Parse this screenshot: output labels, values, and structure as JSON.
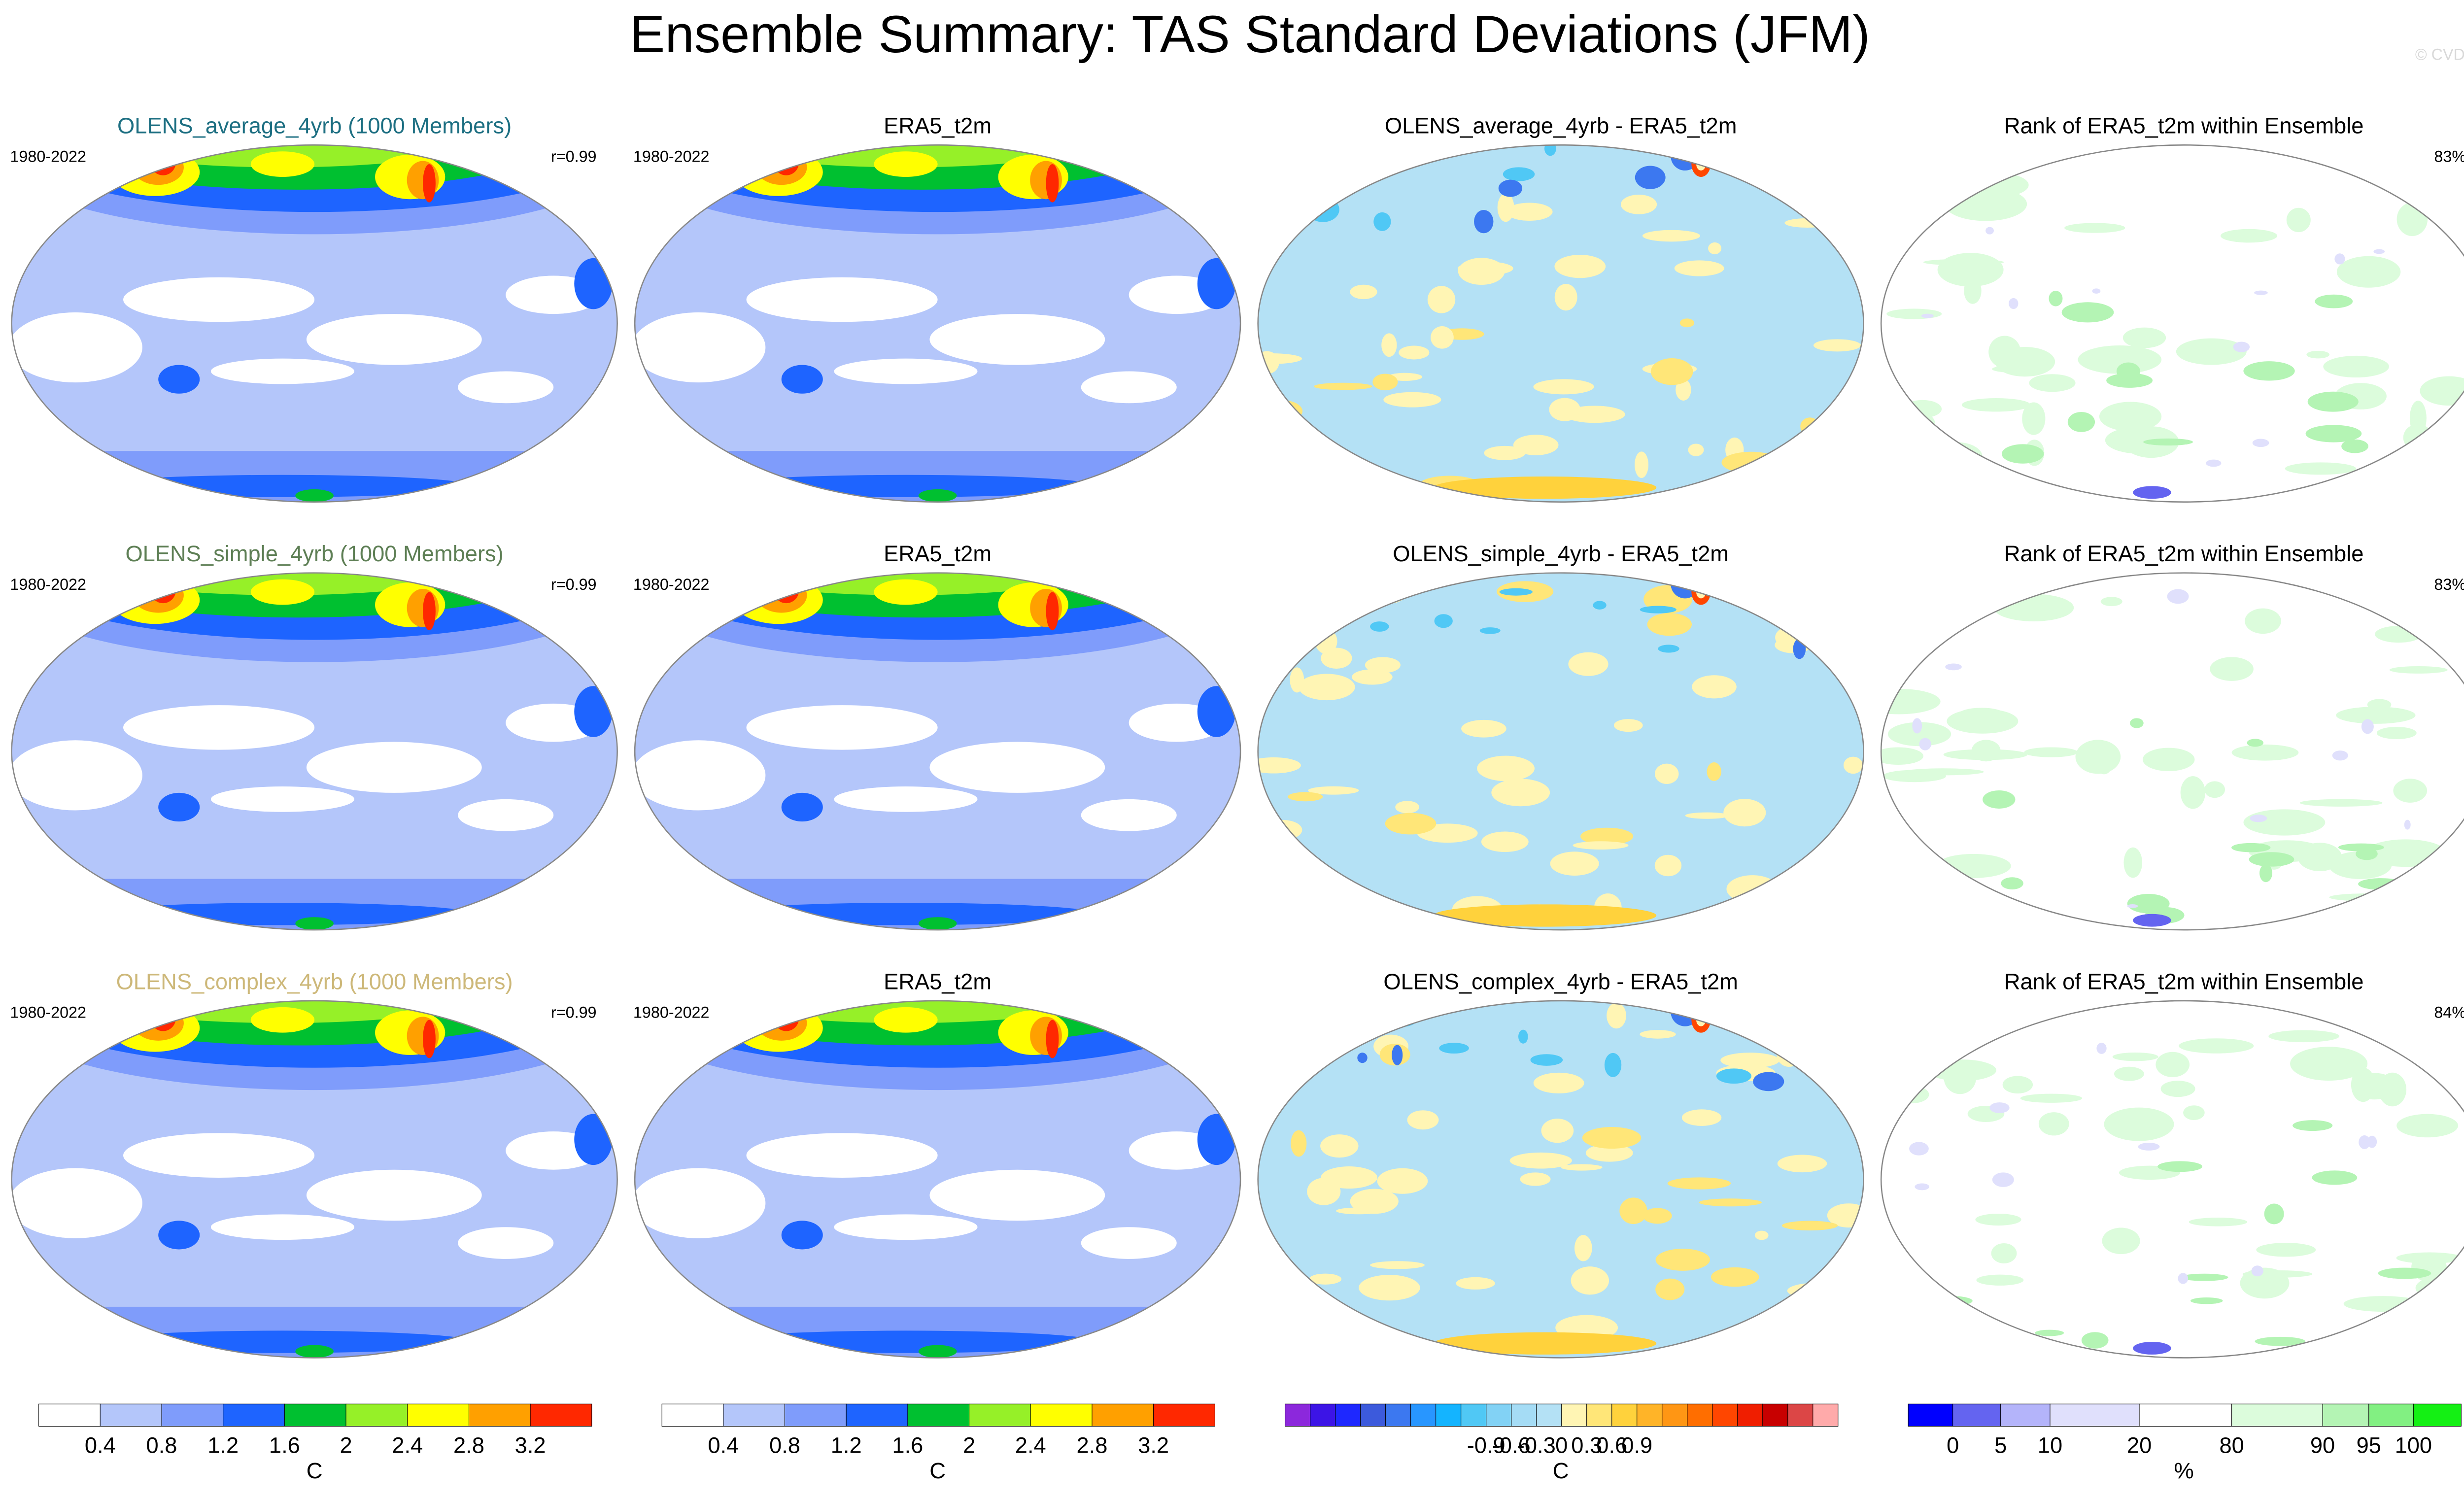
{
  "title": "Ensemble Summary: TAS Standard Deviations (JFM)",
  "watermark": "© CVDP",
  "rows": [
    {
      "panels": [
        {
          "title": "OLENS_average_4yrb (1000 Members)",
          "color": "#1d6f82",
          "map": "std",
          "left": "1980-2022",
          "right": "r=0.99"
        },
        {
          "title": "ERA5_t2m",
          "color": "#000000",
          "map": "std",
          "left": "1980-2022"
        },
        {
          "title": "OLENS_average_4yrb - ERA5_t2m",
          "color": "#000000",
          "map": "diff"
        },
        {
          "title": "Rank of ERA5_t2m within Ensemble",
          "color": "#000000",
          "map": "rank",
          "right": "83%"
        }
      ]
    },
    {
      "panels": [
        {
          "title": "OLENS_simple_4yrb (1000 Members)",
          "color": "#5e7f55",
          "map": "std",
          "left": "1980-2022",
          "right": "r=0.99"
        },
        {
          "title": "ERA5_t2m",
          "color": "#000000",
          "map": "std",
          "left": "1980-2022"
        },
        {
          "title": "OLENS_simple_4yrb - ERA5_t2m",
          "color": "#000000",
          "map": "diff"
        },
        {
          "title": "Rank of ERA5_t2m within Ensemble",
          "color": "#000000",
          "map": "rank",
          "right": "83%"
        }
      ]
    },
    {
      "panels": [
        {
          "title": "OLENS_complex_4yrb (1000 Members)",
          "color": "#cdb879",
          "map": "std",
          "left": "1980-2022",
          "right": "r=0.99"
        },
        {
          "title": "ERA5_t2m",
          "color": "#000000",
          "map": "std",
          "left": "1980-2022"
        },
        {
          "title": "OLENS_complex_4yrb - ERA5_t2m",
          "color": "#000000",
          "map": "diff"
        },
        {
          "title": "Rank of ERA5_t2m within Ensemble",
          "color": "#000000",
          "map": "rank",
          "right": "84%"
        }
      ]
    }
  ],
  "colorbars": [
    {
      "colors": [
        "#ffffff",
        "#b4c6fa",
        "#7f9cfb",
        "#1e64ff",
        "#00c030",
        "#96f028",
        "#ffff00",
        "#ffa000",
        "#ff2800"
      ],
      "ticks": [
        "0.4",
        "0.8",
        "1.2",
        "1.6",
        "2",
        "2.4",
        "2.8",
        "3.2"
      ],
      "unit": "C"
    },
    {
      "colors": [
        "#ffffff",
        "#b4c6fa",
        "#7f9cfb",
        "#1e64ff",
        "#00c030",
        "#96f028",
        "#ffff00",
        "#ffa000",
        "#ff2800"
      ],
      "ticks": [
        "0.4",
        "0.8",
        "1.2",
        "1.6",
        "2",
        "2.4",
        "2.8",
        "3.2"
      ],
      "unit": "C"
    },
    {
      "colors": [
        "#8c28dc",
        "#3c14e6",
        "#1e28ff",
        "#3c5adc",
        "#3c78f0",
        "#2896ff",
        "#14b4ff",
        "#50c8f5",
        "#82d2f5",
        "#a5dcf5",
        "#b4e1f5",
        "#fff5b4",
        "#ffe678",
        "#ffd23c",
        "#ffb428",
        "#ff9614",
        "#ff6e00",
        "#ff4600",
        "#f01e00",
        "#c80000",
        "#dc4646",
        "#ffaaaa"
      ],
      "ticks": [
        "-0.9",
        "-0.6",
        "-0.3",
        "0",
        "0.3",
        "0.6",
        "0.9"
      ],
      "unit": "C"
    },
    {
      "colors": [
        "#0000ff",
        "#6464f0",
        "#b4b4fa",
        "#e0e0fc",
        "#ffffff",
        "#dcfcdc",
        "#b4f4b4",
        "#82f082",
        "#14f014"
      ],
      "ticks": [
        "0",
        "5",
        "10",
        "20",
        "80",
        "90",
        "95",
        "100"
      ],
      "unit": "%"
    }
  ]
}
